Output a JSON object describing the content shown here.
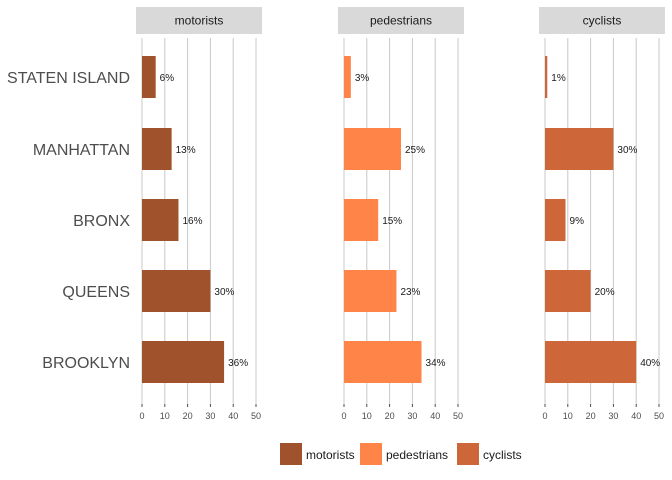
{
  "chart_data": {
    "type": "bar",
    "orientation": "horizontal",
    "categories": [
      "STATEN ISLAND",
      "MANHATTAN",
      "BRONX",
      "QUEENS",
      "BROOKLYN"
    ],
    "series": [
      {
        "name": "motorists",
        "color": "#a0522d",
        "values": [
          6,
          13,
          16,
          30,
          36
        ],
        "labels": [
          "6%",
          "13%",
          "16%",
          "30%",
          "36%"
        ]
      },
      {
        "name": "pedestrians",
        "color": "#ff8448",
        "values": [
          3,
          25,
          15,
          23,
          34
        ],
        "labels": [
          "3%",
          "25%",
          "15%",
          "23%",
          "34%"
        ]
      },
      {
        "name": "cyclists",
        "color": "#cd673a",
        "values": [
          1,
          30,
          9,
          20,
          40
        ],
        "labels": [
          "1%",
          "30%",
          "9%",
          "20%",
          "40%"
        ]
      }
    ],
    "xlim": [
      0,
      50
    ],
    "xticks": [
      0,
      10,
      20,
      30,
      40,
      50
    ],
    "grid": true,
    "legend_position": "bottom"
  }
}
